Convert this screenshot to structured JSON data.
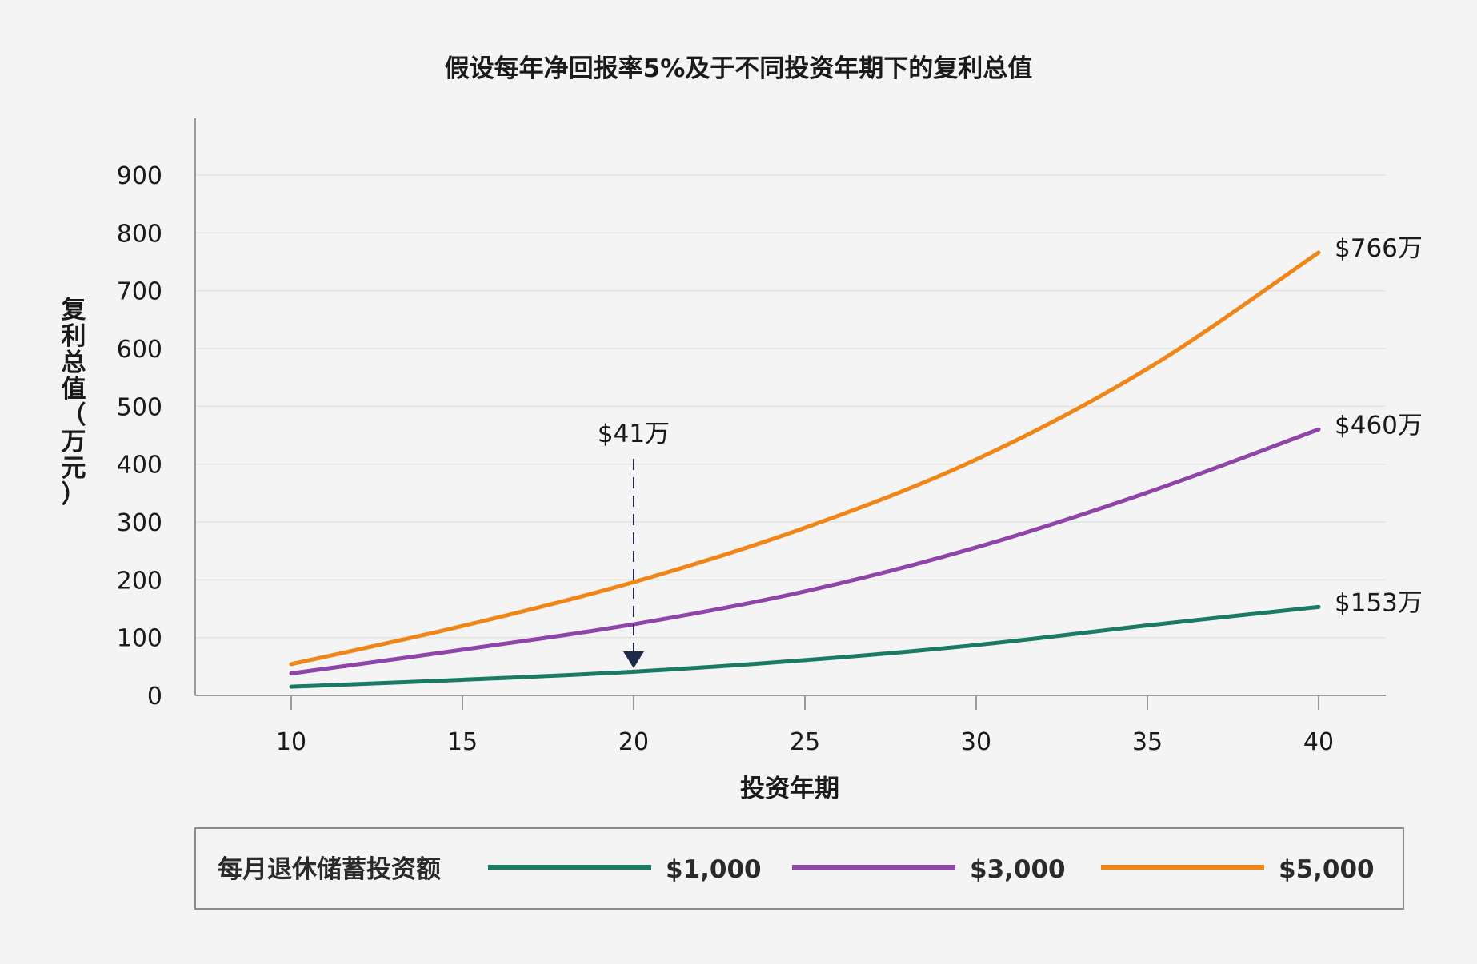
{
  "chart_data": {
    "type": "line",
    "title": "假设每年净回报率5%及于不同投资年期下的复利总值",
    "xlabel": "投资年期",
    "ylabel": "复利总值（万元）",
    "x": [
      10,
      15,
      20,
      25,
      30,
      35,
      40
    ],
    "xlim": [
      8,
      42
    ],
    "ylim": [
      0,
      1000
    ],
    "y_ticks": [
      0,
      100,
      200,
      300,
      400,
      500,
      600,
      700,
      800,
      900
    ],
    "grid": true,
    "legend_position": "bottom",
    "legend_title": "每月退休储蓄投资额",
    "series": [
      {
        "name": "$1,000",
        "color": "#1a7a64",
        "values": [
          15,
          27,
          41,
          61,
          87,
          121,
          153
        ],
        "end_label": "$153万"
      },
      {
        "name": "$3,000",
        "color": "#8e44a8",
        "values": [
          38,
          79,
          123,
          180,
          256,
          351,
          460
        ],
        "end_label": "$460万"
      },
      {
        "name": "$5,000",
        "color": "#f08518",
        "values": [
          54,
          120,
          196,
          290,
          408,
          565,
          766
        ],
        "end_label": "$766万"
      }
    ],
    "annotation": {
      "label": "$41万",
      "x": 20,
      "y": 41,
      "color": "#1e2a48"
    }
  }
}
